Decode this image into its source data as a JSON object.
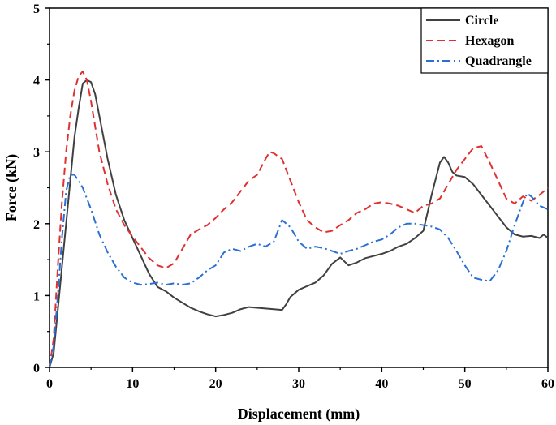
{
  "chart_data": {
    "type": "line",
    "title": "",
    "xlabel": "Displacement (mm)",
    "ylabel": "Force (kN)",
    "xlim": [
      0,
      60
    ],
    "ylim": [
      0,
      5
    ],
    "xticks": [
      0,
      10,
      20,
      30,
      40,
      50,
      60
    ],
    "yticks": [
      0,
      1,
      2,
      3,
      4,
      5
    ],
    "grid": false,
    "legend_position": "top-right",
    "series": [
      {
        "name": "Circle",
        "color": "#404040",
        "style": "solid",
        "points": [
          [
            0,
            0
          ],
          [
            0.5,
            0.2
          ],
          [
            1,
            0.8
          ],
          [
            1.5,
            1.4
          ],
          [
            2,
            2.0
          ],
          [
            2.5,
            2.6
          ],
          [
            3,
            3.2
          ],
          [
            3.5,
            3.6
          ],
          [
            4,
            3.95
          ],
          [
            4.5,
            4.0
          ],
          [
            5,
            3.97
          ],
          [
            5.5,
            3.8
          ],
          [
            6,
            3.5
          ],
          [
            7,
            2.9
          ],
          [
            8,
            2.4
          ],
          [
            9,
            2.05
          ],
          [
            10,
            1.8
          ],
          [
            11,
            1.55
          ],
          [
            12,
            1.3
          ],
          [
            13,
            1.12
          ],
          [
            14,
            1.06
          ],
          [
            15,
            0.97
          ],
          [
            16,
            0.9
          ],
          [
            17,
            0.83
          ],
          [
            18,
            0.78
          ],
          [
            19,
            0.74
          ],
          [
            20,
            0.71
          ],
          [
            21,
            0.73
          ],
          [
            22,
            0.76
          ],
          [
            23,
            0.81
          ],
          [
            24,
            0.84
          ],
          [
            25,
            0.83
          ],
          [
            26,
            0.82
          ],
          [
            27,
            0.81
          ],
          [
            28,
            0.8
          ],
          [
            28.5,
            0.88
          ],
          [
            29,
            0.98
          ],
          [
            30,
            1.08
          ],
          [
            31,
            1.13
          ],
          [
            32,
            1.18
          ],
          [
            33,
            1.28
          ],
          [
            34,
            1.44
          ],
          [
            35,
            1.53
          ],
          [
            36,
            1.42
          ],
          [
            37,
            1.46
          ],
          [
            38,
            1.52
          ],
          [
            39,
            1.55
          ],
          [
            40,
            1.58
          ],
          [
            41,
            1.62
          ],
          [
            42,
            1.68
          ],
          [
            43,
            1.72
          ],
          [
            44,
            1.8
          ],
          [
            45,
            1.9
          ],
          [
            46,
            2.4
          ],
          [
            47,
            2.85
          ],
          [
            47.5,
            2.93
          ],
          [
            48,
            2.85
          ],
          [
            48.5,
            2.72
          ],
          [
            49,
            2.67
          ],
          [
            50,
            2.65
          ],
          [
            51,
            2.55
          ],
          [
            52,
            2.4
          ],
          [
            53,
            2.25
          ],
          [
            54,
            2.1
          ],
          [
            55,
            1.95
          ],
          [
            56,
            1.85
          ],
          [
            57,
            1.82
          ],
          [
            58,
            1.83
          ],
          [
            59,
            1.8
          ],
          [
            59.5,
            1.85
          ],
          [
            60,
            1.8
          ]
        ]
      },
      {
        "name": "Hexagon",
        "color": "#e03030",
        "style": "dashed",
        "points": [
          [
            0,
            0
          ],
          [
            0.5,
            0.4
          ],
          [
            1,
            1.4
          ],
          [
            1.5,
            2.3
          ],
          [
            2,
            3.0
          ],
          [
            2.5,
            3.5
          ],
          [
            3,
            3.85
          ],
          [
            3.5,
            4.05
          ],
          [
            4,
            4.12
          ],
          [
            4.5,
            4.0
          ],
          [
            5,
            3.7
          ],
          [
            5.5,
            3.35
          ],
          [
            6,
            3.0
          ],
          [
            7,
            2.55
          ],
          [
            8,
            2.2
          ],
          [
            9,
            1.98
          ],
          [
            10,
            1.82
          ],
          [
            11,
            1.67
          ],
          [
            12,
            1.52
          ],
          [
            13,
            1.42
          ],
          [
            14,
            1.38
          ],
          [
            15,
            1.45
          ],
          [
            16,
            1.65
          ],
          [
            17,
            1.85
          ],
          [
            18,
            1.92
          ],
          [
            19,
            1.98
          ],
          [
            20,
            2.08
          ],
          [
            21,
            2.2
          ],
          [
            22,
            2.3
          ],
          [
            23,
            2.45
          ],
          [
            24,
            2.6
          ],
          [
            25,
            2.68
          ],
          [
            26,
            2.9
          ],
          [
            26.5,
            3.0
          ],
          [
            27,
            2.98
          ],
          [
            28,
            2.9
          ],
          [
            29,
            2.6
          ],
          [
            30,
            2.3
          ],
          [
            31,
            2.05
          ],
          [
            32,
            1.95
          ],
          [
            33,
            1.88
          ],
          [
            34,
            1.9
          ],
          [
            35,
            1.98
          ],
          [
            36,
            2.05
          ],
          [
            37,
            2.15
          ],
          [
            38,
            2.2
          ],
          [
            39,
            2.28
          ],
          [
            40,
            2.3
          ],
          [
            41,
            2.28
          ],
          [
            42,
            2.25
          ],
          [
            43,
            2.2
          ],
          [
            44,
            2.15
          ],
          [
            45,
            2.25
          ],
          [
            46,
            2.28
          ],
          [
            47,
            2.35
          ],
          [
            48,
            2.55
          ],
          [
            49,
            2.75
          ],
          [
            50,
            2.9
          ],
          [
            51,
            3.05
          ],
          [
            52,
            3.08
          ],
          [
            53,
            2.85
          ],
          [
            54,
            2.6
          ],
          [
            55,
            2.35
          ],
          [
            56,
            2.28
          ],
          [
            57,
            2.38
          ],
          [
            58,
            2.32
          ],
          [
            59,
            2.4
          ],
          [
            60,
            2.5
          ]
        ]
      },
      {
        "name": "Quadrangle",
        "color": "#2a6fd6",
        "style": "dashdot",
        "points": [
          [
            0,
            0
          ],
          [
            0.5,
            0.3
          ],
          [
            1,
            1.0
          ],
          [
            1.5,
            1.8
          ],
          [
            2,
            2.45
          ],
          [
            2.5,
            2.68
          ],
          [
            3,
            2.68
          ],
          [
            3.5,
            2.6
          ],
          [
            4,
            2.5
          ],
          [
            5,
            2.2
          ],
          [
            6,
            1.85
          ],
          [
            7,
            1.6
          ],
          [
            8,
            1.4
          ],
          [
            9,
            1.25
          ],
          [
            10,
            1.18
          ],
          [
            11,
            1.15
          ],
          [
            12,
            1.16
          ],
          [
            13,
            1.18
          ],
          [
            14,
            1.15
          ],
          [
            15,
            1.17
          ],
          [
            16,
            1.15
          ],
          [
            17,
            1.17
          ],
          [
            18,
            1.25
          ],
          [
            19,
            1.35
          ],
          [
            20,
            1.42
          ],
          [
            21,
            1.6
          ],
          [
            22,
            1.65
          ],
          [
            23,
            1.62
          ],
          [
            24,
            1.68
          ],
          [
            25,
            1.72
          ],
          [
            26,
            1.68
          ],
          [
            27,
            1.75
          ],
          [
            28,
            2.05
          ],
          [
            29,
            1.95
          ],
          [
            30,
            1.75
          ],
          [
            31,
            1.65
          ],
          [
            32,
            1.68
          ],
          [
            33,
            1.66
          ],
          [
            34,
            1.62
          ],
          [
            35,
            1.58
          ],
          [
            36,
            1.62
          ],
          [
            37,
            1.65
          ],
          [
            38,
            1.7
          ],
          [
            39,
            1.75
          ],
          [
            40,
            1.78
          ],
          [
            41,
            1.85
          ],
          [
            42,
            1.95
          ],
          [
            43,
            2.0
          ],
          [
            44,
            2.0
          ],
          [
            45,
            1.98
          ],
          [
            46,
            1.96
          ],
          [
            47,
            1.92
          ],
          [
            48,
            1.8
          ],
          [
            49,
            1.62
          ],
          [
            50,
            1.42
          ],
          [
            51,
            1.25
          ],
          [
            52,
            1.22
          ],
          [
            53,
            1.2
          ],
          [
            54,
            1.35
          ],
          [
            55,
            1.62
          ],
          [
            56,
            1.98
          ],
          [
            57,
            2.3
          ],
          [
            57.5,
            2.42
          ],
          [
            58,
            2.38
          ],
          [
            59,
            2.25
          ],
          [
            60,
            2.2
          ]
        ]
      }
    ]
  }
}
